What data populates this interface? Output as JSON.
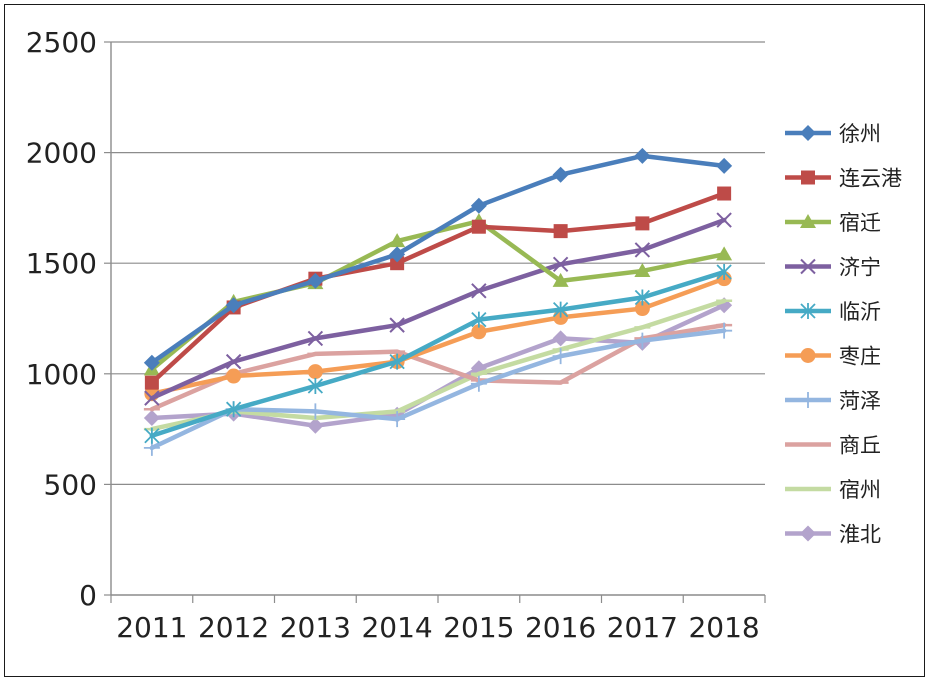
{
  "chart_data": {
    "type": "line",
    "title": "",
    "xlabel": "",
    "ylabel": "",
    "categories": [
      "2011",
      "2012",
      "2013",
      "2014",
      "2015",
      "2016",
      "2017",
      "2018"
    ],
    "ylim": [
      0,
      2500
    ],
    "yticks": [
      0,
      500,
      1000,
      1500,
      2000,
      2500
    ],
    "ytick_labels": [
      "0",
      "500",
      "1000",
      "1500",
      "2000",
      "2500"
    ],
    "grid": "horizontal",
    "legend_position": "right",
    "series": [
      {
        "name": "徐州",
        "color": "#4a7ebb",
        "marker": "diamond",
        "values": [
          1050,
          1310,
          1420,
          1540,
          1760,
          1900,
          1985,
          1940
        ]
      },
      {
        "name": "连云港",
        "color": "#be4b48",
        "marker": "square",
        "values": [
          960,
          1300,
          1430,
          1500,
          1665,
          1645,
          1680,
          1815
        ]
      },
      {
        "name": "宿迁",
        "color": "#98b954",
        "marker": "triangle",
        "values": [
          1020,
          1325,
          1410,
          1600,
          1690,
          1420,
          1465,
          1540
        ]
      },
      {
        "name": "济宁",
        "color": "#7d60a0",
        "marker": "x",
        "values": [
          890,
          1055,
          1160,
          1220,
          1375,
          1495,
          1560,
          1695
        ]
      },
      {
        "name": "临沂",
        "color": "#46aac5",
        "marker": "star",
        "values": [
          720,
          840,
          945,
          1055,
          1245,
          1290,
          1345,
          1460
        ]
      },
      {
        "name": "枣庄",
        "color": "#f59d56",
        "marker": "circle",
        "values": [
          910,
          990,
          1010,
          1055,
          1190,
          1255,
          1295,
          1430
        ]
      },
      {
        "name": "菏泽",
        "color": "#94b6e0",
        "marker": "plus",
        "values": [
          665,
          840,
          830,
          795,
          955,
          1080,
          1150,
          1195
        ]
      },
      {
        "name": "商丘",
        "color": "#dba2a0",
        "marker": "dash",
        "values": [
          840,
          1000,
          1090,
          1100,
          970,
          960,
          1160,
          1220
        ]
      },
      {
        "name": "宿州",
        "color": "#c4dba2",
        "marker": "dash",
        "values": [
          750,
          830,
          800,
          830,
          1000,
          1110,
          1210,
          1330
        ]
      },
      {
        "name": "淮北",
        "color": "#b3a3cc",
        "marker": "diamond",
        "values": [
          800,
          820,
          765,
          815,
          1025,
          1160,
          1140,
          1310
        ]
      }
    ]
  }
}
